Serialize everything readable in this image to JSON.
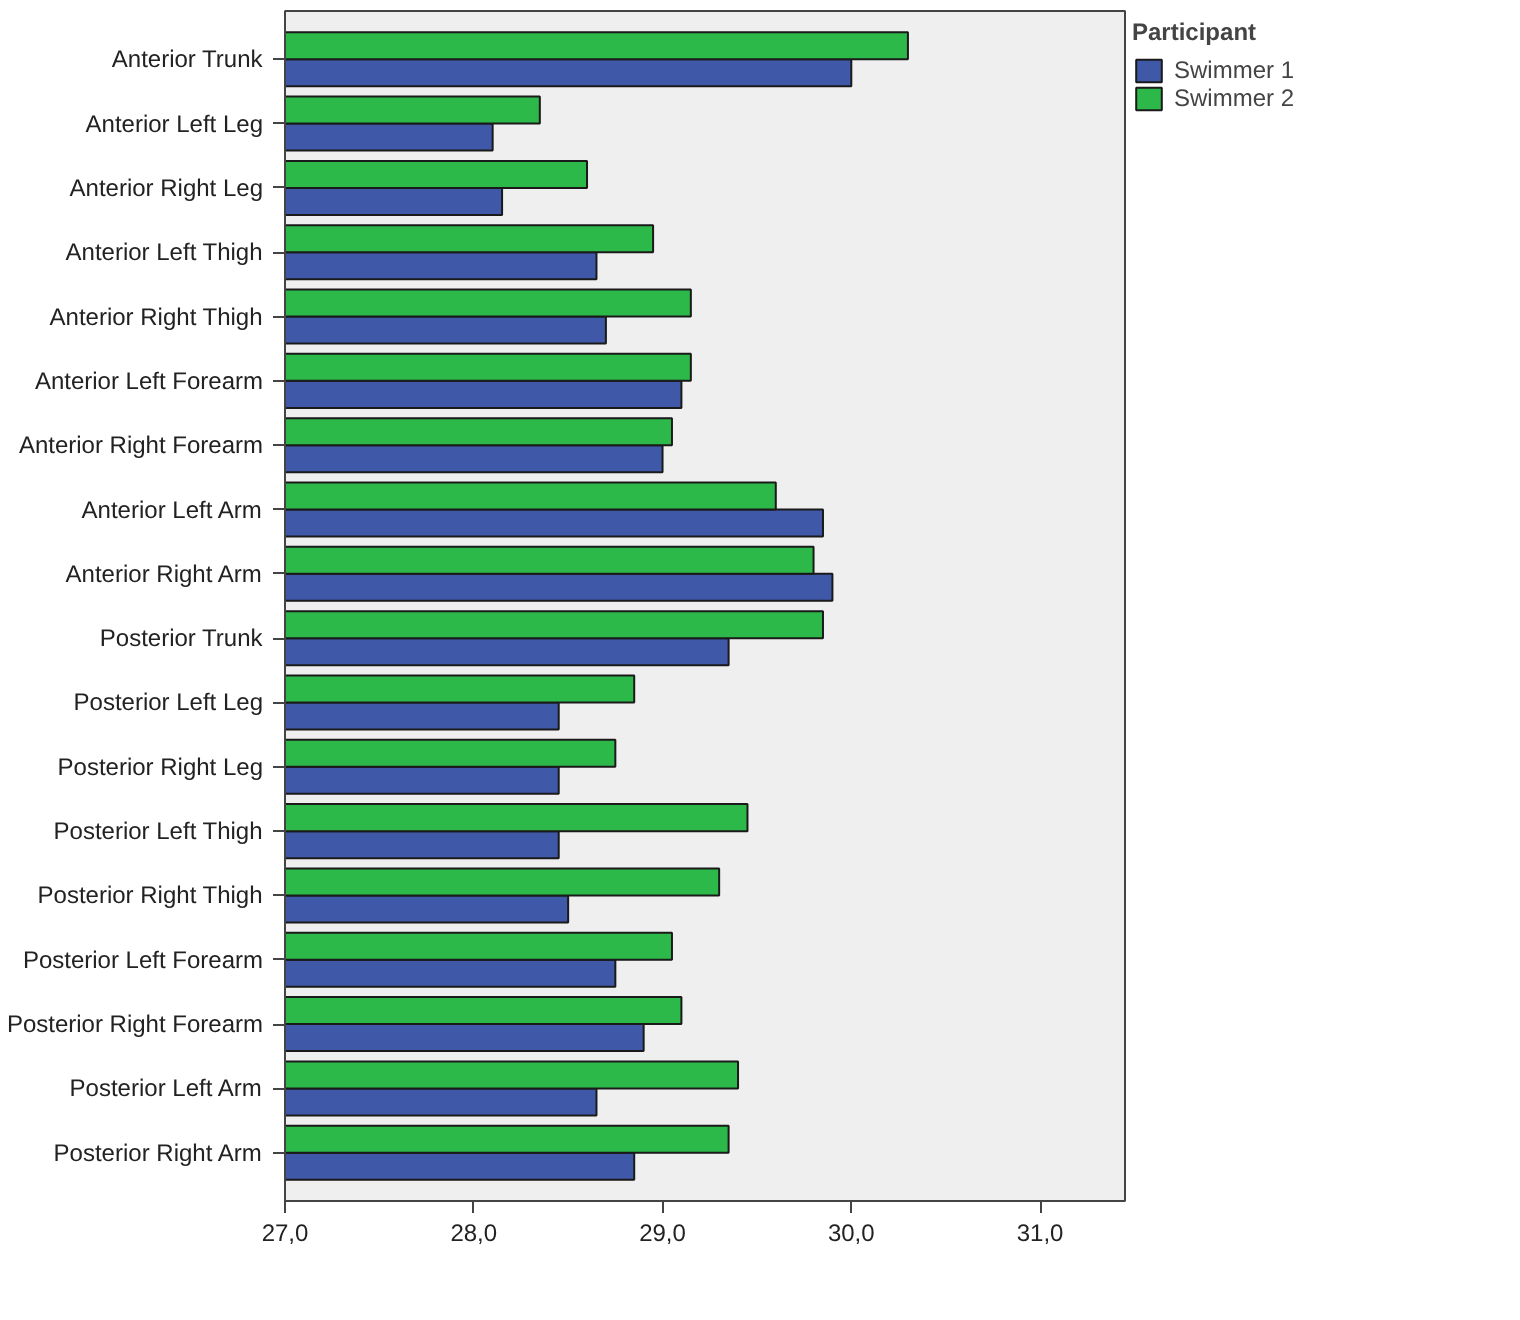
{
  "chart_data": {
    "type": "bar",
    "orientation": "horizontal",
    "legend_title": "Participant",
    "legend": "top right",
    "grid": false,
    "categories": [
      "Anterior Trunk",
      "Anterior Left Leg",
      "Anterior Right Leg",
      "Anterior Left Thigh",
      "Anterior Right Thigh",
      "Anterior Left Forearm",
      "Anterior Right Forearm",
      "Anterior Left Arm",
      "Anterior Right Arm",
      "Posterior Trunk",
      "Posterior Left Leg",
      "Posterior Right Leg",
      "Posterior Left Thigh",
      "Posterior Right Thigh",
      "Posterior Left Forearm",
      "Posterior Right Forearm",
      "Posterior Left Arm",
      "Posterior Right Arm"
    ],
    "series": [
      {
        "name": "Swimmer 1",
        "color": "#3f58a8",
        "values": [
          30.0,
          28.1,
          28.15,
          28.65,
          28.7,
          29.1,
          29.0,
          29.85,
          29.9,
          29.35,
          28.45,
          28.45,
          28.45,
          28.5,
          28.75,
          28.9,
          28.65,
          28.85
        ]
      },
      {
        "name": "Swimmer 2",
        "color": "#2db84a",
        "values": [
          30.3,
          28.35,
          28.6,
          28.95,
          29.15,
          29.15,
          29.05,
          29.6,
          29.8,
          29.85,
          28.85,
          28.75,
          29.45,
          29.3,
          29.05,
          29.1,
          29.4,
          29.35
        ]
      }
    ],
    "xlim": [
      27,
      31.45
    ],
    "xticks": [
      {
        "value": 27,
        "label": "27,0"
      },
      {
        "value": 28,
        "label": "28,0"
      },
      {
        "value": 29,
        "label": "29,0"
      },
      {
        "value": 30,
        "label": "30,0"
      },
      {
        "value": 31,
        "label": "31,0"
      }
    ]
  }
}
